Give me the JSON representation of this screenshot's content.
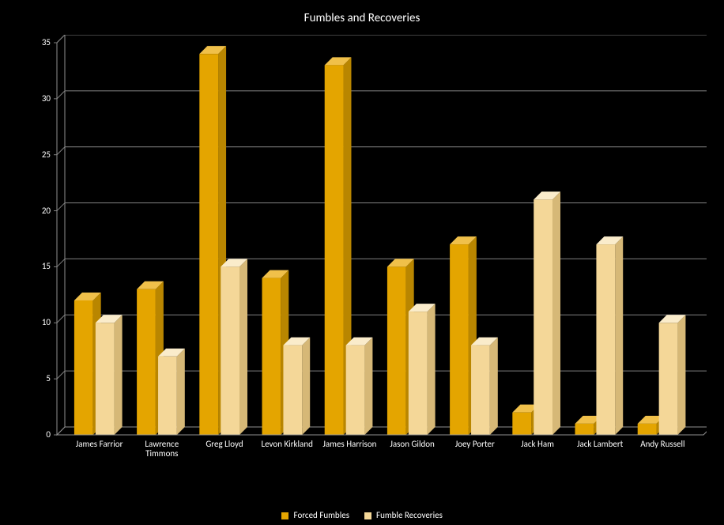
{
  "chart": {
    "type": "bar",
    "title": "Fumbles and Recoveries",
    "title_fontsize": 15,
    "title_color": "#ffffff",
    "background_color": "#000000",
    "plot_background": "#000000",
    "axis_line_color": "#919191",
    "grid_color": "#808080",
    "tick_label_color": "#ffffff",
    "tick_label_fontsize": 11,
    "ylim": [
      0,
      35
    ],
    "ytick_step": 5,
    "categories": [
      "James Farrior",
      "Lawrence Timmons",
      "Greg Lloyd",
      "Levon Kirkland",
      "James Harrison",
      "Jason Gildon",
      "Joey Porter",
      "Jack Ham",
      "Jack Lambert",
      "Andy Russell"
    ],
    "series": [
      {
        "name": "Forced Fumbles",
        "values": [
          12,
          13,
          34,
          14,
          33,
          15,
          17,
          2,
          1,
          1
        ],
        "front_color": "#e4a500",
        "side_color": "#b98600",
        "top_color": "#f0c04a"
      },
      {
        "name": "Fumble Recoveries",
        "values": [
          10,
          7,
          15,
          8,
          8,
          11,
          8,
          21,
          17,
          10
        ],
        "front_color": "#f4d798",
        "side_color": "#d6b877",
        "top_color": "#faeccb"
      }
    ],
    "legend_label_color": "#ffffff",
    "bar_depth": 10
  }
}
